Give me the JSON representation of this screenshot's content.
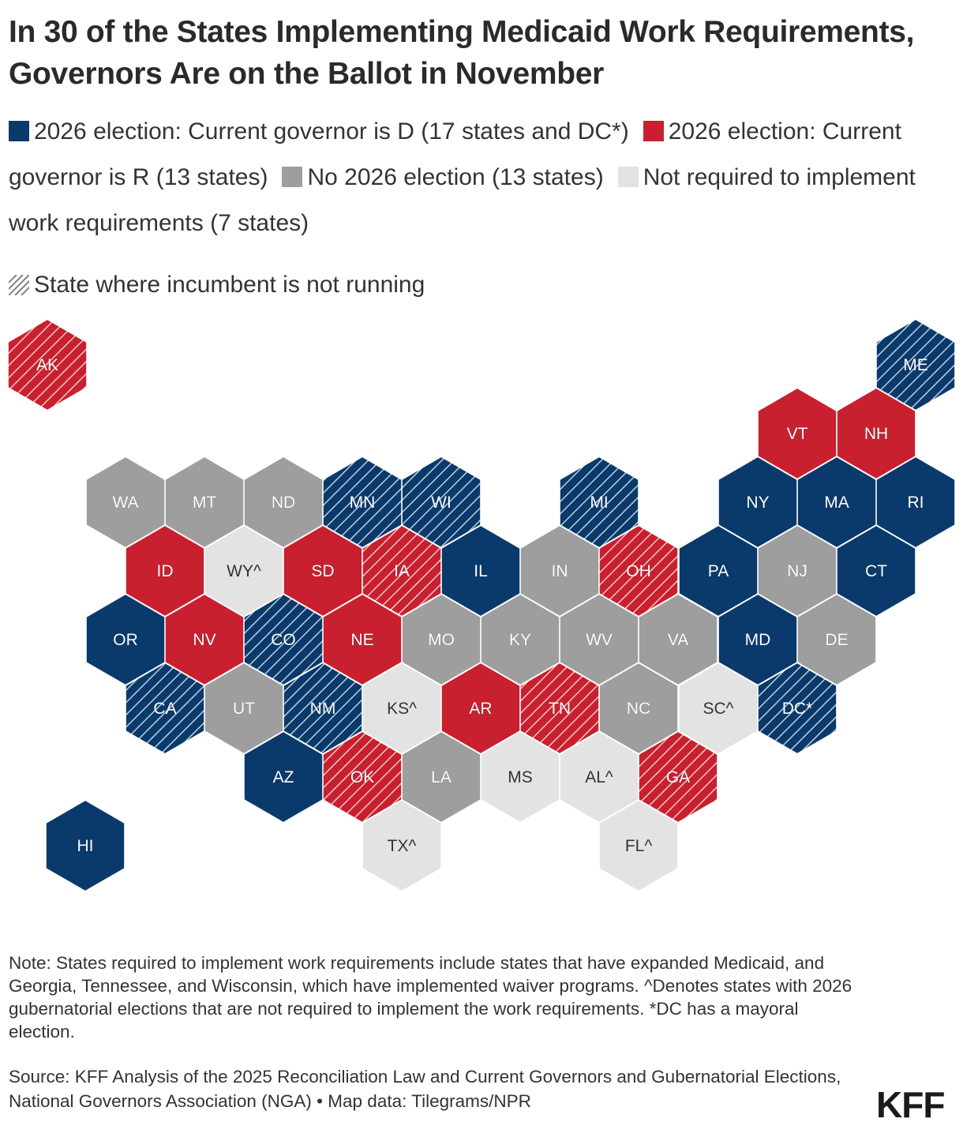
{
  "title": "In 30 of the States Implementing Medicaid Work Requirements, Governors Are on the Ballot in November",
  "legend": {
    "items": [
      {
        "key": "D",
        "label": "2026 election: Current governor is D (17 states and DC*)",
        "color": "#0a3a6b"
      },
      {
        "key": "R",
        "label": "2026 election: Current governor is R (13 states)",
        "color": "#c8202f"
      },
      {
        "key": "N",
        "label": "No 2026 election (13 states)",
        "color": "#9e9e9e"
      },
      {
        "key": "X",
        "label": "Not required to implement work requirements (7 states)",
        "color": "#e3e3e3"
      }
    ],
    "hatch_label": "State where incumbent is not running"
  },
  "states": [
    {
      "abbr": "AK",
      "cat": "R",
      "hatch": true
    },
    {
      "abbr": "ME",
      "cat": "D",
      "hatch": true
    },
    {
      "abbr": "VT",
      "cat": "R",
      "hatch": false
    },
    {
      "abbr": "NH",
      "cat": "R",
      "hatch": false
    },
    {
      "abbr": "WA",
      "cat": "N",
      "hatch": false
    },
    {
      "abbr": "MT",
      "cat": "N",
      "hatch": false
    },
    {
      "abbr": "ND",
      "cat": "N",
      "hatch": false
    },
    {
      "abbr": "MN",
      "cat": "D",
      "hatch": true
    },
    {
      "abbr": "WI",
      "cat": "D",
      "hatch": true
    },
    {
      "abbr": "MI",
      "cat": "D",
      "hatch": true
    },
    {
      "abbr": "NY",
      "cat": "D",
      "hatch": false
    },
    {
      "abbr": "MA",
      "cat": "D",
      "hatch": false
    },
    {
      "abbr": "RI",
      "cat": "D",
      "hatch": false
    },
    {
      "abbr": "ID",
      "cat": "R",
      "hatch": false
    },
    {
      "abbr": "WY^",
      "cat": "X",
      "hatch": false
    },
    {
      "abbr": "SD",
      "cat": "R",
      "hatch": false
    },
    {
      "abbr": "IA",
      "cat": "R",
      "hatch": true
    },
    {
      "abbr": "IL",
      "cat": "D",
      "hatch": false
    },
    {
      "abbr": "IN",
      "cat": "N",
      "hatch": false
    },
    {
      "abbr": "OH",
      "cat": "R",
      "hatch": true
    },
    {
      "abbr": "PA",
      "cat": "D",
      "hatch": false
    },
    {
      "abbr": "NJ",
      "cat": "N",
      "hatch": false
    },
    {
      "abbr": "CT",
      "cat": "D",
      "hatch": false
    },
    {
      "abbr": "OR",
      "cat": "D",
      "hatch": false
    },
    {
      "abbr": "NV",
      "cat": "R",
      "hatch": false
    },
    {
      "abbr": "CO",
      "cat": "D",
      "hatch": true
    },
    {
      "abbr": "NE",
      "cat": "R",
      "hatch": false
    },
    {
      "abbr": "MO",
      "cat": "N",
      "hatch": false
    },
    {
      "abbr": "KY",
      "cat": "N",
      "hatch": false
    },
    {
      "abbr": "WV",
      "cat": "N",
      "hatch": false
    },
    {
      "abbr": "VA",
      "cat": "N",
      "hatch": false
    },
    {
      "abbr": "MD",
      "cat": "D",
      "hatch": false
    },
    {
      "abbr": "DE",
      "cat": "N",
      "hatch": false
    },
    {
      "abbr": "CA",
      "cat": "D",
      "hatch": true
    },
    {
      "abbr": "UT",
      "cat": "N",
      "hatch": false
    },
    {
      "abbr": "NM",
      "cat": "D",
      "hatch": true
    },
    {
      "abbr": "KS^",
      "cat": "X",
      "hatch": false
    },
    {
      "abbr": "AR",
      "cat": "R",
      "hatch": false
    },
    {
      "abbr": "TN",
      "cat": "R",
      "hatch": true
    },
    {
      "abbr": "NC",
      "cat": "N",
      "hatch": false
    },
    {
      "abbr": "SC^",
      "cat": "X",
      "hatch": false
    },
    {
      "abbr": "DC*",
      "cat": "D",
      "hatch": true
    },
    {
      "abbr": "AZ",
      "cat": "D",
      "hatch": false
    },
    {
      "abbr": "OK",
      "cat": "R",
      "hatch": true
    },
    {
      "abbr": "LA",
      "cat": "N",
      "hatch": false
    },
    {
      "abbr": "MS",
      "cat": "X",
      "hatch": false
    },
    {
      "abbr": "AL^",
      "cat": "X",
      "hatch": false
    },
    {
      "abbr": "GA",
      "cat": "R",
      "hatch": true
    },
    {
      "abbr": "HI",
      "cat": "D",
      "hatch": false
    },
    {
      "abbr": "TX^",
      "cat": "X",
      "hatch": false
    },
    {
      "abbr": "FL^",
      "cat": "X",
      "hatch": false
    }
  ],
  "note": "Note: States required to implement work requirements include states that have expanded Medicaid, and Georgia, Tennessee, and Wisconsin, which have implemented waiver programs. ^Denotes states with 2026 gubernatorial elections that are not required to implement the work requirements. *DC has a mayoral election.",
  "source": "Source: KFF Analysis of the 2025 Reconciliation Law and Current Governors and Gubernatorial Elections, National Governors Association (NGA) • Map data: Tilegrams/NPR",
  "logo": "KFF"
}
